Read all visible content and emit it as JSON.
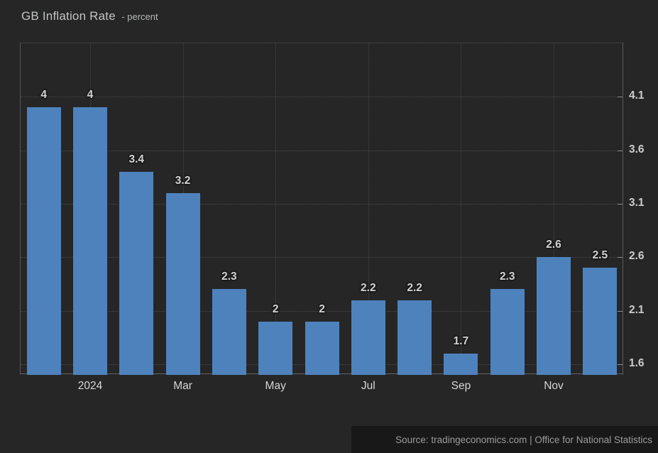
{
  "header": {
    "title": "GB Inflation Rate",
    "subtitle": "- percent"
  },
  "footer": {
    "source": "Source: tradingeconomics.com | Office for National Statistics"
  },
  "colors": {
    "background": "#262626",
    "bar": "#4e82bd",
    "text": "#cccccc",
    "source_band": "#181818"
  },
  "chart_data": {
    "type": "bar",
    "title": "GB Inflation Rate",
    "subtitle": "percent",
    "categories": [
      "",
      "2024",
      "",
      "Mar",
      "",
      "May",
      "",
      "Jul",
      "",
      "Sep",
      "",
      "Nov",
      ""
    ],
    "values": [
      4,
      4,
      3.4,
      3.2,
      2.3,
      2,
      2,
      2.2,
      2.2,
      1.7,
      2.3,
      2.6,
      2.5
    ],
    "value_labels": [
      "4",
      "4",
      "3.4",
      "3.2",
      "2.3",
      "2",
      "2",
      "2.2",
      "2.2",
      "1.7",
      "2.3",
      "2.6",
      "2.5"
    ],
    "y_ticks": [
      4.1,
      3.6,
      3.1,
      2.6,
      2.1,
      1.6
    ],
    "ylim": [
      1.5,
      4.6
    ],
    "xlabel": "",
    "ylabel": "percent",
    "grid": "dotted",
    "legend": "none",
    "y_axis_side": "right",
    "bar_color": "#4e82bd",
    "source": "Source: tradingeconomics.com | Office for National Statistics"
  }
}
